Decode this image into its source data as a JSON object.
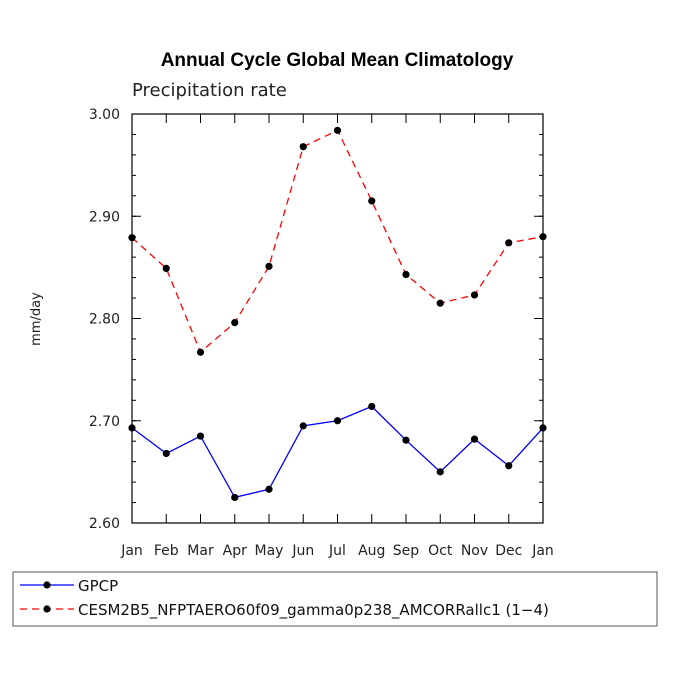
{
  "chart_data": {
    "type": "line",
    "title": "Annual Cycle Global Mean Climatology",
    "subtitle": "Precipitation rate",
    "xlabel": "",
    "ylabel": "mm/day",
    "categories": [
      "Jan",
      "Feb",
      "Mar",
      "Apr",
      "May",
      "Jun",
      "Jul",
      "Aug",
      "Sep",
      "Oct",
      "Nov",
      "Dec",
      "Jan"
    ],
    "ylim": [
      2.6,
      3.0
    ],
    "yticks": [
      "2.60",
      "2.70",
      "2.80",
      "2.90",
      "3.00"
    ],
    "ytick_values": [
      2.6,
      2.7,
      2.8,
      2.9,
      3.0
    ],
    "legend_position": "bottom-left",
    "series": [
      {
        "name": "GPCP",
        "color": "#0000ff",
        "dash": "solid",
        "values": [
          2.693,
          2.668,
          2.685,
          2.625,
          2.633,
          2.695,
          2.7,
          2.714,
          2.681,
          2.65,
          2.682,
          2.656,
          2.693
        ]
      },
      {
        "name": "CESM2B5_NFPTAERO60f09_gamma0p238_AMCORRallc1 (1−4)",
        "color": "#ff0000",
        "dash": "dashed",
        "values": [
          2.879,
          2.849,
          2.767,
          2.796,
          2.851,
          2.968,
          2.984,
          2.915,
          2.843,
          2.815,
          2.823,
          2.874,
          2.88
        ]
      }
    ]
  }
}
